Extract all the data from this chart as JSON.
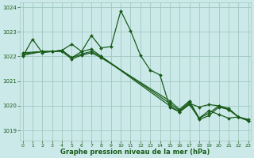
{
  "title": "Graphe pression niveau de la mer (hPa)",
  "bg": "#cbe9e9",
  "grid_color": "#a0c8c0",
  "lc": "#1a5c1a",
  "xlim": [
    -0.3,
    23.3
  ],
  "ylim": [
    1018.6,
    1024.2
  ],
  "yticks": [
    1019,
    1020,
    1021,
    1022,
    1023,
    1024
  ],
  "xticks": [
    0,
    1,
    2,
    3,
    4,
    5,
    6,
    7,
    8,
    9,
    10,
    11,
    12,
    13,
    14,
    15,
    16,
    17,
    18,
    19,
    20,
    21,
    22,
    23
  ],
  "s1_x": [
    0,
    1,
    2,
    3,
    4,
    5,
    6,
    7,
    8,
    9,
    10,
    11,
    12,
    13,
    14,
    15,
    16,
    17,
    18,
    19,
    20,
    21,
    22,
    23
  ],
  "s1_y": [
    1022.0,
    1022.7,
    1022.15,
    1022.2,
    1022.25,
    1022.5,
    1022.2,
    1022.85,
    1022.35,
    1022.4,
    1023.85,
    1023.05,
    1022.05,
    1021.45,
    1021.25,
    1019.95,
    1019.75,
    1020.05,
    1019.5,
    1019.8,
    1019.65,
    1019.5,
    1019.55,
    1019.4
  ],
  "s2_x": [
    0,
    2,
    3,
    4,
    5,
    6,
    7,
    8,
    15,
    16,
    17,
    18,
    19,
    20,
    21,
    22,
    23
  ],
  "s2_y": [
    1022.05,
    1022.2,
    1022.2,
    1022.25,
    1021.95,
    1022.2,
    1022.3,
    1022.0,
    1020.0,
    1019.75,
    1020.1,
    1019.95,
    1020.05,
    1020.0,
    1019.85,
    1019.55,
    1019.4
  ],
  "s3_x": [
    0,
    2,
    3,
    4,
    5,
    6,
    7,
    8,
    15,
    16,
    17,
    18,
    19,
    20,
    21,
    22,
    23
  ],
  "s3_y": [
    1022.1,
    1022.2,
    1022.2,
    1022.25,
    1021.95,
    1022.1,
    1022.2,
    1022.0,
    1020.1,
    1019.8,
    1020.15,
    1019.45,
    1019.6,
    1019.95,
    1019.85,
    1019.55,
    1019.4
  ],
  "s4_x": [
    0,
    2,
    3,
    4,
    5,
    6,
    7,
    8,
    15,
    16,
    17,
    18,
    19,
    20,
    21,
    22,
    23
  ],
  "s4_y": [
    1022.15,
    1022.2,
    1022.2,
    1022.2,
    1021.9,
    1022.05,
    1022.15,
    1021.95,
    1020.2,
    1019.85,
    1020.2,
    1019.5,
    1019.7,
    1020.0,
    1019.9,
    1019.55,
    1019.45
  ]
}
